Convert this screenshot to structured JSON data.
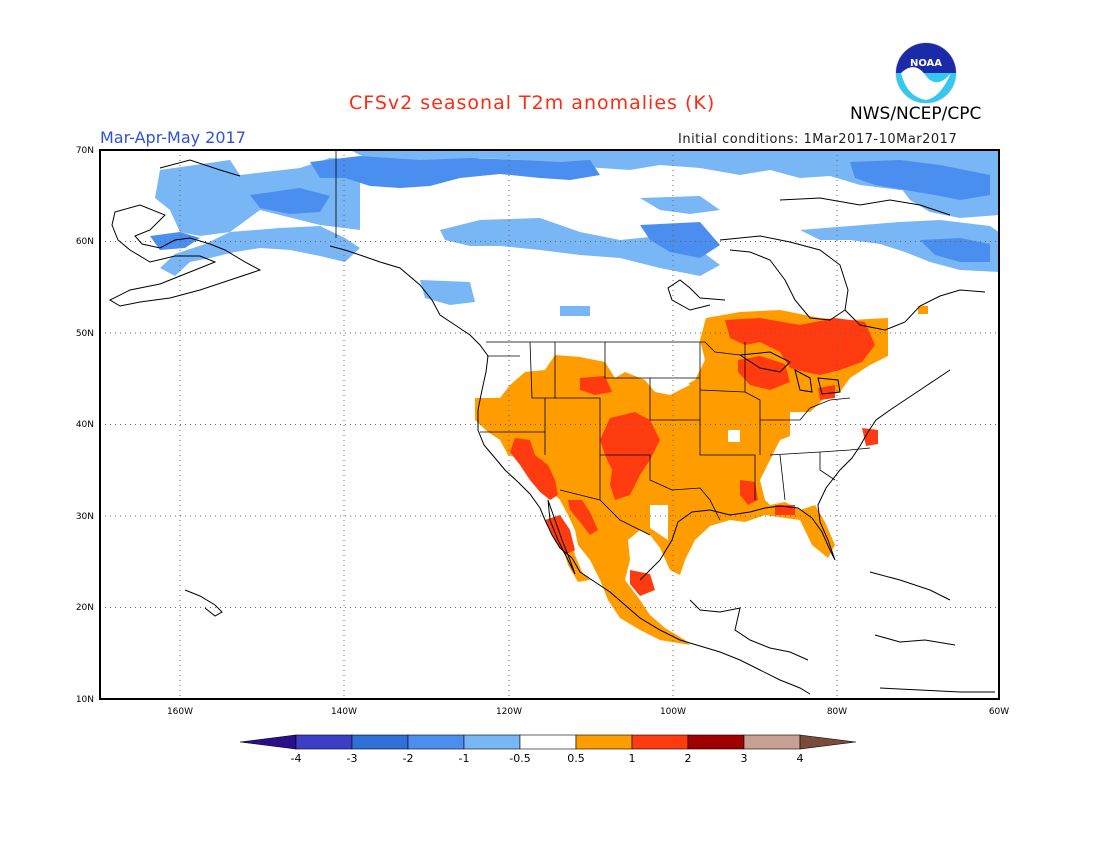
{
  "header": {
    "title": "CFSv2 seasonal T2m anomalies (K)",
    "season": "Mar-Apr-May 2017",
    "initial_conditions": "Initial conditions: 1Mar2017-10Mar2017",
    "organization": "NWS/NCEP/CPC",
    "logo_text": "NOAA"
  },
  "axes": {
    "lat_labels": [
      "70N",
      "60N",
      "50N",
      "40N",
      "30N",
      "20N",
      "10N"
    ],
    "lon_labels": [
      "160W",
      "140W",
      "120W",
      "100W",
      "80W",
      "60W"
    ],
    "lat_range": [
      10,
      70
    ],
    "lon_range": [
      -172,
      -60
    ]
  },
  "legend": {
    "levels": [
      "-4",
      "-3",
      "-2",
      "-1",
      "-0.5",
      "0.5",
      "1",
      "2",
      "3",
      "4"
    ],
    "colors": [
      "#2a0e8c",
      "#3d3ec8",
      "#2f6fd8",
      "#4a8ff0",
      "#79b6f5",
      "#ffffff",
      "#ff9d00",
      "#ff3b0f",
      "#a10000",
      "#c8a091",
      "#7a4a3a"
    ]
  },
  "anomaly_regions": [
    {
      "category": "-1 to -0.5",
      "color": "#79b6f5",
      "description": "Alaska, northern Canada and Greenland"
    },
    {
      "category": "-2 to -1",
      "color": "#4a8ff0",
      "description": "Canadian Arctic and Hudson Bay coast"
    },
    {
      "category": "0.5 to 1",
      "color": "#ff9d00",
      "description": "Western, central and southern United States and Mexico"
    },
    {
      "category": "1 to 2",
      "color": "#ff3b0f",
      "description": "Southwest US, southern Plains and Great Lakes / Ontario"
    }
  ]
}
